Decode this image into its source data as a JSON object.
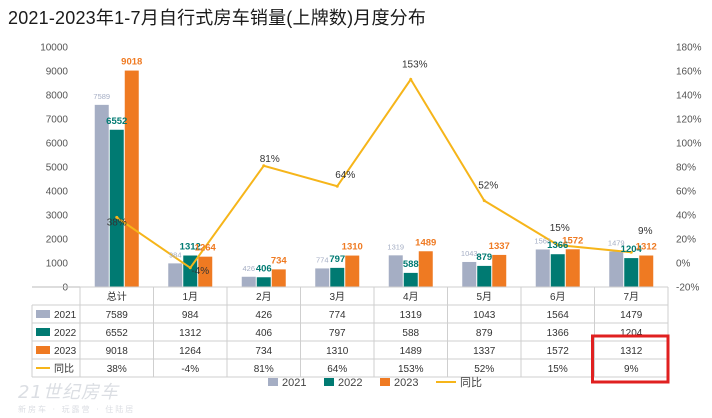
{
  "title": "2021-2023年1-7月自行式房车销量(上牌数)月度分布",
  "watermark": {
    "main": "21世纪房车",
    "sub": "新房车 · 玩露营 · 住陆居"
  },
  "colors": {
    "s2021": "#a5aec4",
    "s2022": "#007a72",
    "s2023": "#ef7a22",
    "yoy": "#f6b51a",
    "highlight": "#e02020"
  },
  "chart_data": {
    "type": "bar",
    "title": "2021-2023年1-7月自行式房车销量(上牌数)月度分布",
    "categories": [
      "总计",
      "1月",
      "2月",
      "3月",
      "4月",
      "5月",
      "6月",
      "7月"
    ],
    "left_axis": {
      "ylim": [
        0,
        10000
      ],
      "ticks": [
        "0",
        "1000",
        "2000",
        "3000",
        "4000",
        "5000",
        "6000",
        "7000",
        "8000",
        "9000",
        "10000"
      ]
    },
    "right_axis": {
      "ylim": [
        -20,
        180
      ],
      "ticks": [
        "-20%",
        "0%",
        "20%",
        "40%",
        "60%",
        "80%",
        "100%",
        "120%",
        "140%",
        "160%",
        "180%"
      ]
    },
    "series": [
      {
        "name": "2021",
        "type": "bar",
        "values": [
          7589,
          984,
          426,
          774,
          1319,
          1043,
          1564,
          1479
        ],
        "labels": [
          "7589",
          "984",
          "426",
          "774",
          "1319",
          "1043",
          "1564",
          "1479"
        ]
      },
      {
        "name": "2022",
        "type": "bar",
        "values": [
          6552,
          1312,
          406,
          797,
          588,
          879,
          1366,
          1204
        ],
        "labels": [
          "6552",
          "1312",
          "406",
          "797",
          "588",
          "879",
          "1366",
          "1204"
        ]
      },
      {
        "name": "2023",
        "type": "bar",
        "values": [
          9018,
          1264,
          734,
          1310,
          1489,
          1337,
          1572,
          1312
        ],
        "labels": [
          "9018",
          "1264",
          "734",
          "1310",
          "1489",
          "1337",
          "1572",
          "1312"
        ]
      },
      {
        "name": "同比",
        "type": "line",
        "axis": "right",
        "values": [
          38,
          -4,
          81,
          64,
          153,
          52,
          15,
          9
        ],
        "labels": [
          "38%",
          "-4%",
          "81%",
          "64%",
          "153%",
          "52%",
          "15%",
          "9%"
        ]
      }
    ],
    "table": {
      "rows": [
        {
          "name": "2021",
          "cells": [
            "7589",
            "984",
            "426",
            "774",
            "1319",
            "1043",
            "1564",
            "1479"
          ]
        },
        {
          "name": "2022",
          "cells": [
            "6552",
            "1312",
            "406",
            "797",
            "588",
            "879",
            "1366",
            "1204"
          ]
        },
        {
          "name": "2023",
          "cells": [
            "9018",
            "1264",
            "734",
            "1310",
            "1489",
            "1337",
            "1572",
            "1312"
          ]
        },
        {
          "name": "同比",
          "cells": [
            "38%",
            "-4%",
            "81%",
            "64%",
            "153%",
            "52%",
            "15%",
            "9%"
          ]
        }
      ]
    },
    "legend": [
      "2021",
      "2022",
      "2023",
      "同比"
    ],
    "legend_position": "bottom",
    "highlight": "July 2023 and 同比 cells boxed in red",
    "grid": false
  }
}
